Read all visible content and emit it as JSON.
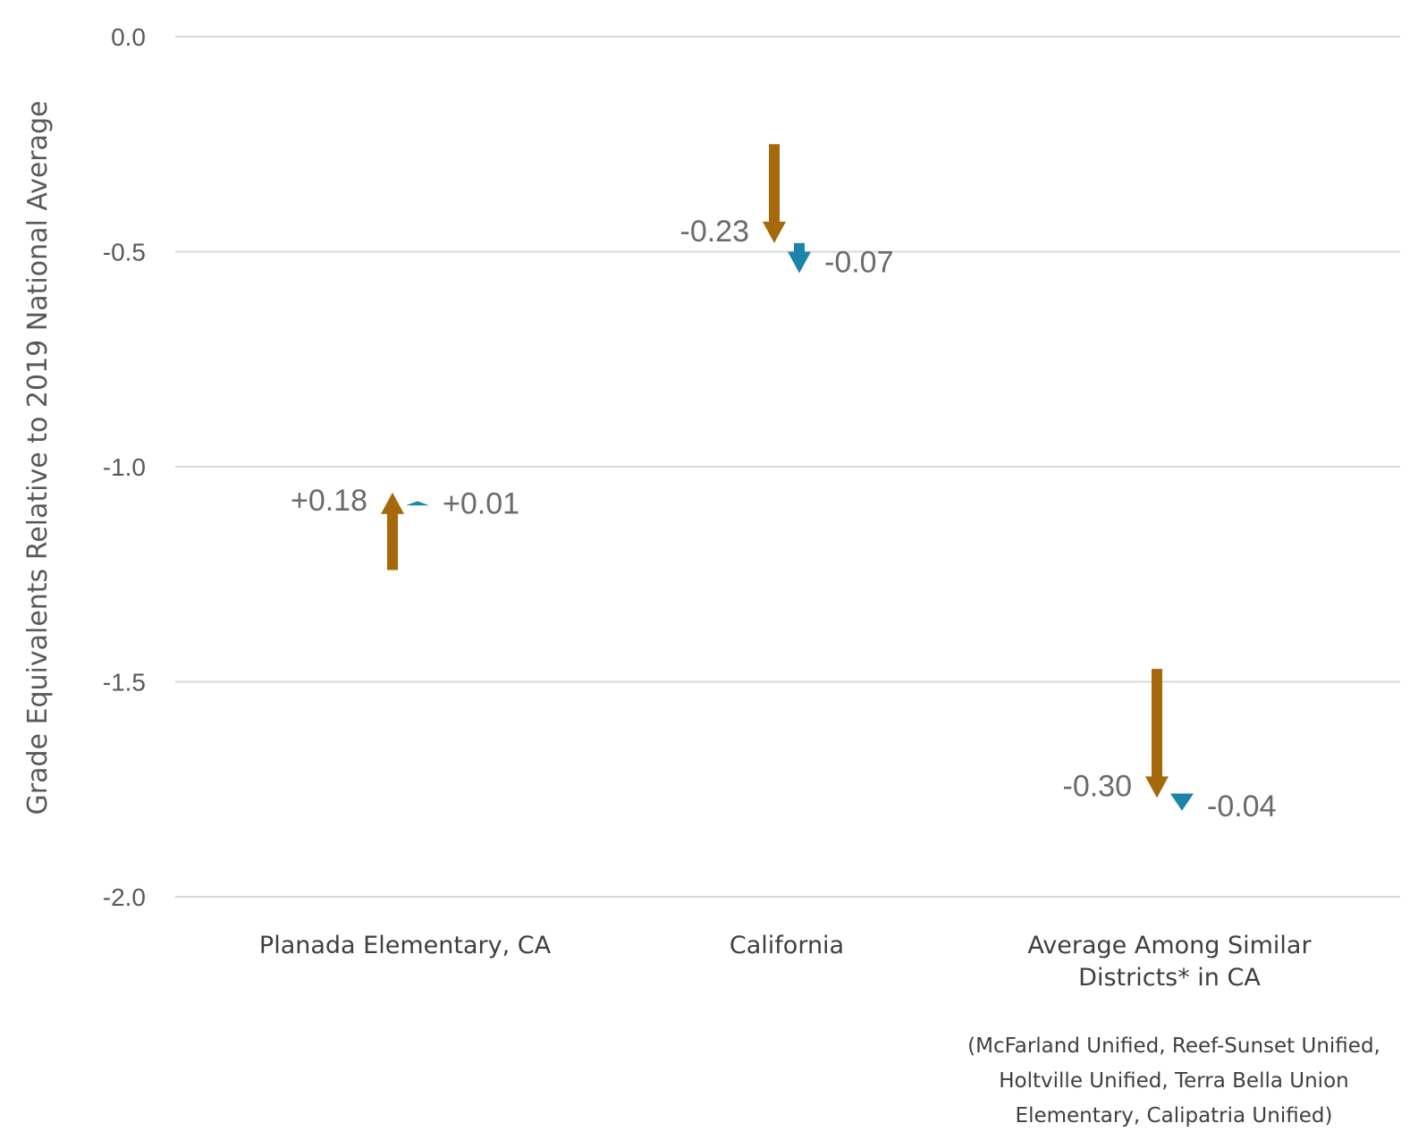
{
  "chart_data": {
    "type": "arrow",
    "ylabel": "Grade Equivalents Relative to 2019 National Average",
    "ylim": [
      -2.0,
      0.0
    ],
    "yticks": [
      "0.0",
      "-0.5",
      "-1.0",
      "-1.5",
      "-2.0"
    ],
    "grid": true,
    "categories": [
      [
        "Planada Elementary, CA"
      ],
      [
        "California"
      ],
      [
        "Average Among Similar",
        "Districts* in CA"
      ]
    ],
    "series": [
      {
        "color": "#a5690c",
        "start": [
          -1.24,
          -0.25,
          -1.47
        ],
        "end": [
          -1.06,
          -0.48,
          -1.77
        ],
        "labels": [
          "+0.18",
          "-0.23",
          "-0.30"
        ]
      },
      {
        "color": "#1a85a8",
        "start": [
          -1.09,
          -0.48,
          -1.76
        ],
        "end": [
          -1.08,
          -0.55,
          -1.8
        ],
        "labels": [
          "+0.01",
          "-0.07",
          "-0.04"
        ]
      }
    ],
    "footnote": [
      "(McFarland Unified, Reef-Sunset Unified,",
      "Holtville Unified, Terra Bella Union",
      "Elementary, Calipatria Unified)"
    ]
  }
}
